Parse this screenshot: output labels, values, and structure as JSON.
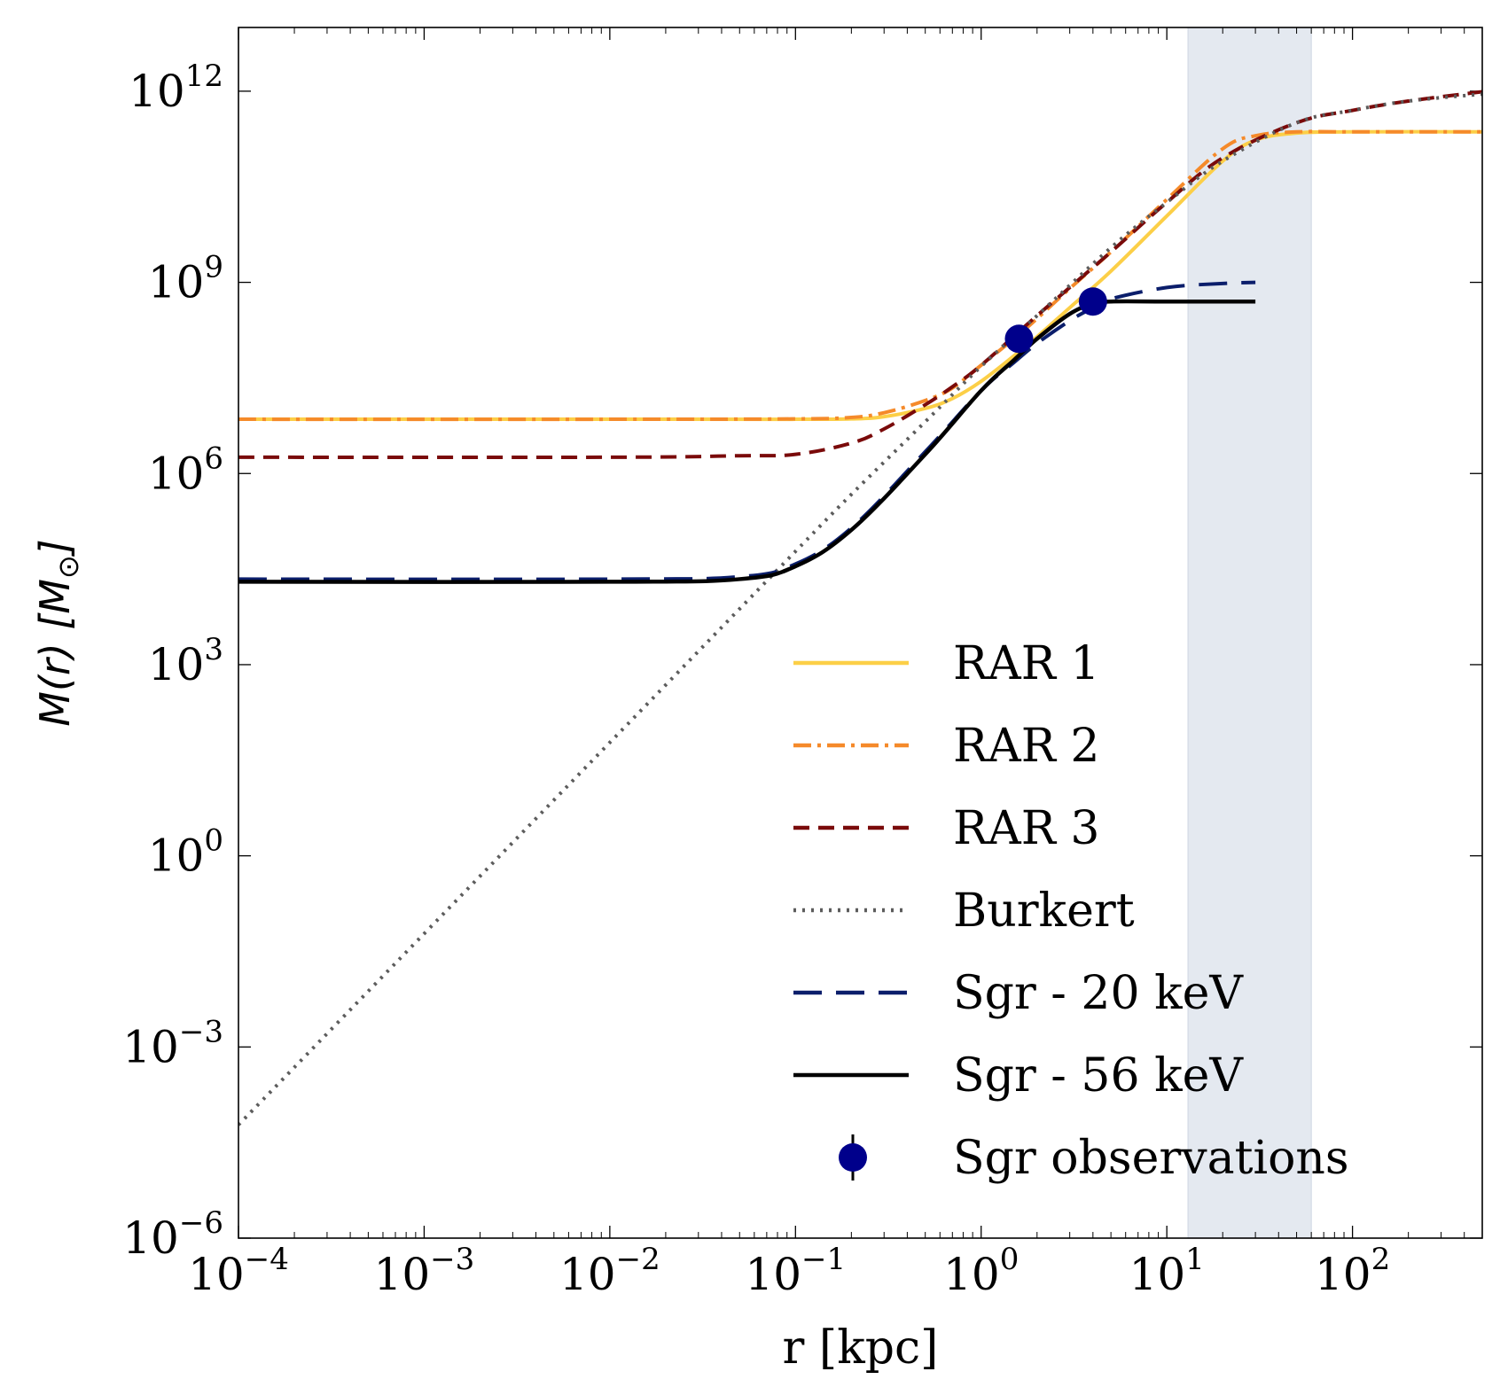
{
  "chart_data": {
    "type": "line",
    "xscale": "log",
    "yscale": "log",
    "xlim": [
      0.0001,
      500
    ],
    "ylim": [
      1e-06,
      10000000000000.0
    ],
    "xlabel": "r [kpc]",
    "ylabel": {
      "prefix": "M(r) [M",
      "subscript": "⊙",
      "suffix": "]"
    },
    "x_ticks": [
      {
        "base": "10",
        "exp": "−4",
        "value": 0.0001
      },
      {
        "base": "10",
        "exp": "−3",
        "value": 0.001
      },
      {
        "base": "10",
        "exp": "−2",
        "value": 0.01
      },
      {
        "base": "10",
        "exp": "−1",
        "value": 0.1
      },
      {
        "base": "10",
        "exp": "0",
        "value": 1
      },
      {
        "base": "10",
        "exp": "1",
        "value": 10
      },
      {
        "base": "10",
        "exp": "2",
        "value": 100
      }
    ],
    "y_ticks": [
      {
        "base": "10",
        "exp": "−6",
        "value": 1e-06
      },
      {
        "base": "10",
        "exp": "−3",
        "value": 0.001
      },
      {
        "base": "10",
        "exp": "0",
        "value": 1
      },
      {
        "base": "10",
        "exp": "3",
        "value": 1000
      },
      {
        "base": "10",
        "exp": "6",
        "value": 1000000
      },
      {
        "base": "10",
        "exp": "9",
        "value": 1000000000
      },
      {
        "base": "10",
        "exp": "12",
        "value": 1000000000000
      }
    ],
    "shaded_region": {
      "x": [
        13,
        60
      ],
      "color": "#e4e9f0"
    },
    "series": [
      {
        "name": "RAR 1",
        "color": "#fccf47",
        "dash": "solid",
        "x": [
          0.0001,
          0.01,
          0.1,
          0.2,
          0.3,
          0.5,
          0.7,
          1.0,
          1.5,
          2,
          3,
          5,
          10,
          20,
          30,
          50,
          100,
          500
        ],
        "y": [
          7100000.0,
          7100000.0,
          7100000.0,
          7200000.0,
          7800000.0,
          10500000.0,
          15000000.0,
          28000000.0,
          70000000.0,
          140000000.0,
          400000000.0,
          1500000000.0,
          11000000000.0,
          80000000000.0,
          170000000000.0,
          220000000000.0,
          230000000000.0,
          230000000000.0
        ]
      },
      {
        "name": "RAR 2",
        "color": "#f58a2a",
        "dash": "dashdot",
        "x": [
          0.0001,
          0.01,
          0.1,
          0.2,
          0.3,
          0.5,
          0.7,
          1.0,
          1.5,
          2,
          3,
          5,
          10,
          20,
          30,
          50,
          100,
          500
        ],
        "y": [
          7100000.0,
          7100000.0,
          7200000.0,
          7600000.0,
          9000000.0,
          14000000.0,
          22000000.0,
          50000000.0,
          130000000.0,
          270000000.0,
          800000000.0,
          3000000000.0,
          20000000000.0,
          125000000000.0,
          200000000000.0,
          230000000000.0,
          230000000000.0,
          230000000000.0
        ]
      },
      {
        "name": "RAR 3",
        "color": "#7a0a0a",
        "dash": "dashed",
        "x": [
          0.0001,
          0.01,
          0.05,
          0.1,
          0.2,
          0.3,
          0.5,
          0.7,
          1.0,
          2,
          5,
          10,
          20,
          50,
          100,
          200,
          500
        ],
        "y": [
          1800000.0,
          1800000.0,
          1900000.0,
          2000000.0,
          3000000.0,
          5000000.0,
          12000000.0,
          23000000.0,
          50000000.0,
          300000000.0,
          3000000000.0,
          18000000000.0,
          90000000000.0,
          320000000000.0,
          500000000000.0,
          700000000000.0,
          980000000000.0
        ]
      },
      {
        "name": "Burkert",
        "color": "#5c5c5c",
        "dash": "dotted",
        "x": [
          0.0001,
          0.001,
          0.01,
          0.1,
          0.2,
          0.5,
          1,
          2,
          5,
          10,
          20,
          50,
          100,
          200,
          500
        ],
        "y": [
          6e-05,
          0.06,
          60,
          60000.0,
          470000.0,
          6500000.0,
          48000000.0,
          300000000.0,
          3500000000.0,
          18000000000.0,
          80000000000.0,
          320000000000.0,
          500000000000.0,
          700000000000.0,
          900000000000.0
        ]
      },
      {
        "name": "Sgr - 20 keV",
        "color": "#0b1e6b",
        "dash": "longdash",
        "x": [
          0.0001,
          0.01,
          0.05,
          0.1,
          0.2,
          0.5,
          1,
          1.5,
          2,
          3,
          4,
          5,
          10,
          20,
          30
        ],
        "y": [
          22000.0,
          22000.0,
          24000.0,
          38000.0,
          140000.0,
          2200000.0,
          20000000.0,
          55000000.0,
          110000000.0,
          250000000.0,
          400000000.0,
          550000000.0,
          830000000.0,
          960000000.0,
          1000000000.0
        ]
      },
      {
        "name": "Sgr - 56 keV",
        "color": "#000000",
        "dash": "solid",
        "x": [
          0.0001,
          0.01,
          0.05,
          0.1,
          0.2,
          0.5,
          1,
          1.5,
          2,
          3,
          4,
          5,
          10,
          30
        ],
        "y": [
          20000.0,
          20000.0,
          22000.0,
          35000.0,
          130000.0,
          2000000.0,
          20000000.0,
          60000000.0,
          130000000.0,
          320000000.0,
          460000000.0,
          500000000.0,
          500000000.0,
          500000000.0
        ]
      }
    ],
    "observations": {
      "name": "Sgr observations",
      "color": "#00008b",
      "points": [
        {
          "x": 1.6,
          "y": 130000000.0,
          "yerr_low": 90000000.0,
          "yerr_high": 170000000.0
        },
        {
          "x": 4.0,
          "y": 500000000.0,
          "yerr_low": 450000000.0,
          "yerr_high": 550000000.0
        }
      ]
    },
    "legend_position": "lower-right"
  }
}
